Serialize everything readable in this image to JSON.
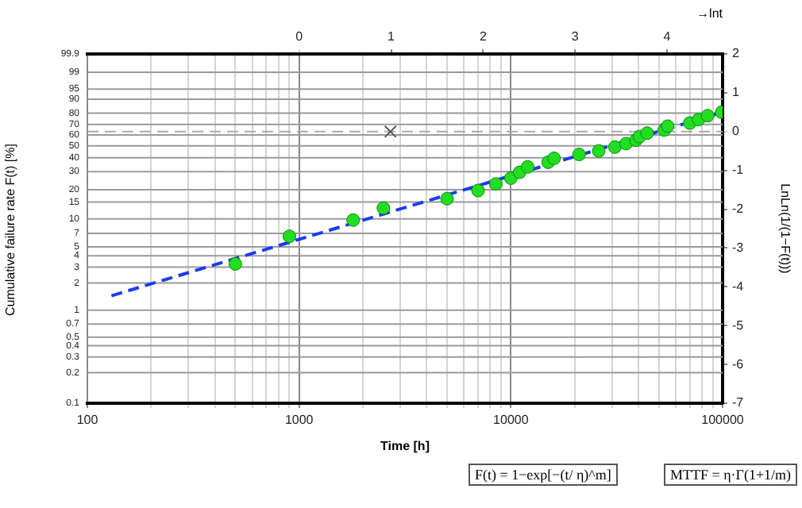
{
  "chart_data": {
    "type": "scatter",
    "xlabel": "Time [h]",
    "ylabel": "LnLn(1/(1−F(t)))",
    "x2label": "→lnt",
    "log": "x",
    "grid": "x",
    "xlim": [
      100,
      100000
    ],
    "xticks": [
      100,
      {
        "value": 200,
        "label": null
      },
      {
        "value": 300,
        "label": null
      },
      {
        "value": 400,
        "label": null
      },
      {
        "value": 500,
        "label": null
      },
      {
        "value": 600,
        "label": null
      },
      {
        "value": 700,
        "label": null
      },
      {
        "value": 800,
        "label": null
      },
      {
        "value": 900,
        "label": null
      },
      1000,
      {
        "value": 2000,
        "label": null
      },
      {
        "value": 3000,
        "label": null
      },
      {
        "value": 4000,
        "label": null
      },
      {
        "value": 5000,
        "label": null
      },
      {
        "value": 6000,
        "label": null
      },
      {
        "value": 7000,
        "label": null
      },
      {
        "value": 8000,
        "label": null
      },
      {
        "value": 9000,
        "label": null
      },
      10000,
      {
        "value": 20000,
        "label": null
      },
      {
        "value": 30000,
        "label": null
      },
      {
        "value": 40000,
        "label": null
      },
      {
        "value": 50000,
        "label": null
      },
      {
        "value": 60000,
        "label": null
      },
      {
        "value": 70000,
        "label": null
      },
      {
        "value": 80000,
        "label": null
      },
      {
        "value": 90000,
        "label": null
      },
      100000
    ],
    "x2lim": [
      -2.303,
      4.605
    ],
    "x2ticks": [
      0,
      1,
      2,
      3,
      4
    ],
    "ylim": [
      -7,
      2
    ],
    "yticks": [
      -7,
      -6,
      -5,
      -4,
      -3,
      -2,
      -1,
      0,
      1,
      2
    ],
    "ref_lines": [
      {
        "axis": "y",
        "value": 0,
        "color": "#aaaaaa",
        "line_style": "dashed"
      },
      {
        "axis": "y",
        "value": -6.213,
        "color": "#9a9a9a"
      },
      {
        "axis": "y",
        "value": -5.808,
        "color": "#9a9a9a"
      },
      {
        "axis": "y",
        "value": -5.519,
        "color": "#9a9a9a"
      },
      {
        "axis": "y",
        "value": -5.296,
        "color": "#9a9a9a"
      },
      {
        "axis": "y",
        "value": -4.958,
        "color": "#9a9a9a"
      },
      {
        "axis": "y",
        "value": -4.6,
        "color": "#9a9a9a"
      },
      {
        "axis": "y",
        "value": -3.902,
        "color": "#9a9a9a"
      },
      {
        "axis": "y",
        "value": -3.491,
        "color": "#9a9a9a"
      },
      {
        "axis": "y",
        "value": -3.199,
        "color": "#9a9a9a"
      },
      {
        "axis": "y",
        "value": -2.97,
        "color": "#9a9a9a"
      },
      {
        "axis": "y",
        "value": -2.623,
        "color": "#9a9a9a"
      },
      {
        "axis": "y",
        "value": -2.25,
        "color": "#9a9a9a"
      },
      {
        "axis": "y",
        "value": -1.817,
        "color": "#9a9a9a"
      },
      {
        "axis": "y",
        "value": -1.5,
        "color": "#9a9a9a"
      },
      {
        "axis": "y",
        "value": -1.031,
        "color": "#9a9a9a"
      },
      {
        "axis": "y",
        "value": -0.672,
        "color": "#9a9a9a"
      },
      {
        "axis": "y",
        "value": -0.367,
        "color": "#9a9a9a"
      },
      {
        "axis": "y",
        "value": -0.087,
        "color": "#9a9a9a"
      },
      {
        "axis": "y",
        "value": 0.186,
        "color": "#9a9a9a"
      },
      {
        "axis": "y",
        "value": 0.476,
        "color": "#9a9a9a"
      },
      {
        "axis": "y",
        "value": 0.834,
        "color": "#9a9a9a"
      },
      {
        "axis": "y",
        "value": 1.097,
        "color": "#9a9a9a"
      },
      {
        "axis": "y",
        "value": 1.527,
        "color": "#9a9a9a"
      }
    ],
    "annotations": [
      "Cumulative failure rate  F(t)  [%]",
      "0.1",
      "0.2",
      "0.3",
      "0.4",
      "0.5",
      "0.7",
      "1",
      "2",
      "3",
      "4",
      "5",
      "7",
      "10",
      "15",
      "20",
      "30",
      "40",
      "50",
      "60",
      "70",
      "80",
      "90",
      "95",
      "99",
      "99.9",
      "F(t) = 1−exp[−(t/ η)^m]",
      "MTTF = η·Γ(1+1/m)"
    ],
    "series": [
      {
        "type": "line",
        "x": [
          130,
          100000
        ],
        "values": [
          -4.23,
          0.5
        ],
        "color": "#1a3cf0",
        "line_style": "dashed",
        "marker": "none"
      },
      {
        "type": "scatter",
        "x": [
          500,
          900,
          1800,
          2500,
          5000,
          7000,
          8500,
          10000,
          11000,
          12000,
          15000,
          16000,
          21000,
          26000,
          31000,
          35000,
          39000,
          40500,
          44000,
          53000,
          55000,
          70000,
          77000,
          85000,
          99000
        ],
        "values": [
          -3.41,
          -2.7,
          -2.28,
          -1.97,
          -1.73,
          -1.52,
          -1.35,
          -1.2,
          -1.05,
          -0.91,
          -0.79,
          -0.69,
          -0.59,
          -0.5,
          -0.4,
          -0.31,
          -0.22,
          -0.13,
          -0.04,
          0.04,
          0.14,
          0.22,
          0.31,
          0.41,
          0.5
        ],
        "color": "#22dd22",
        "marker": "circle"
      },
      {
        "type": "scatter",
        "x": [
          2700
        ],
        "values": [
          0
        ],
        "color": "#555555",
        "marker": "cross"
      }
    ]
  }
}
